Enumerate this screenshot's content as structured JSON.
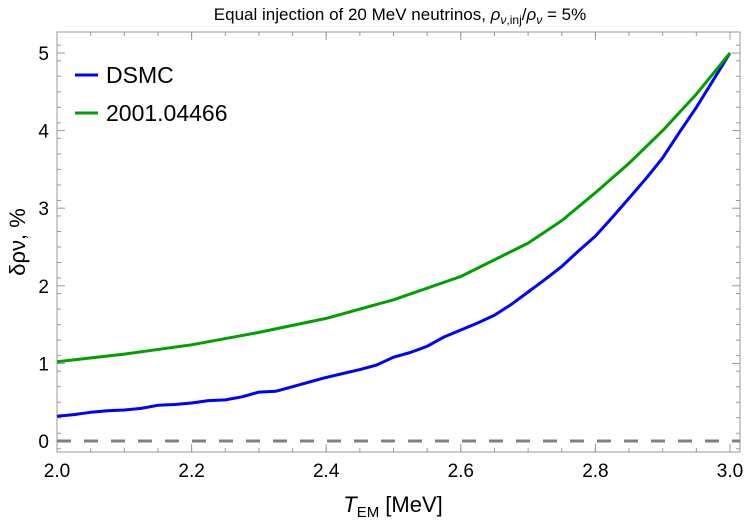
{
  "chart_data": {
    "type": "line",
    "title": "Equal injection of 20 MeV neutrinos, ρν,inj/ρν = 5%",
    "xlabel": "T_EM [MeV]",
    "ylabel": "δρν, %",
    "xlim": [
      2.0,
      3.0
    ],
    "ylim": [
      -0.15,
      5.2
    ],
    "x_ticks": [
      "2.0",
      "2.2",
      "2.4",
      "2.6",
      "2.8",
      "3.0"
    ],
    "y_ticks": [
      "0",
      "1",
      "2",
      "3",
      "4",
      "5"
    ],
    "grid": false,
    "legend_position": "top-left",
    "series": [
      {
        "name": "DSMC",
        "color": "#0000ff",
        "x": [
          2.0,
          2.025,
          2.05,
          2.075,
          2.1,
          2.125,
          2.15,
          2.175,
          2.2,
          2.225,
          2.25,
          2.275,
          2.3,
          2.325,
          2.35,
          2.375,
          2.4,
          2.425,
          2.45,
          2.475,
          2.5,
          2.525,
          2.55,
          2.575,
          2.6,
          2.625,
          2.65,
          2.675,
          2.7,
          2.725,
          2.75,
          2.775,
          2.8,
          2.825,
          2.85,
          2.875,
          2.9,
          2.925,
          2.95,
          2.975,
          3.0
        ],
        "y": [
          0.32,
          0.34,
          0.37,
          0.39,
          0.4,
          0.42,
          0.46,
          0.47,
          0.49,
          0.52,
          0.53,
          0.57,
          0.63,
          0.64,
          0.7,
          0.76,
          0.82,
          0.87,
          0.92,
          0.98,
          1.08,
          1.14,
          1.22,
          1.34,
          1.43,
          1.52,
          1.62,
          1.76,
          1.92,
          2.08,
          2.25,
          2.45,
          2.64,
          2.88,
          3.13,
          3.38,
          3.65,
          3.98,
          4.3,
          4.65,
          5.0
        ]
      },
      {
        "name": "2001.04466",
        "color": "#00a000",
        "x": [
          2.0,
          2.1,
          2.2,
          2.3,
          2.4,
          2.5,
          2.6,
          2.7,
          2.75,
          2.8,
          2.85,
          2.9,
          2.95,
          3.0
        ],
        "y": [
          1.02,
          1.12,
          1.24,
          1.4,
          1.58,
          1.82,
          2.12,
          2.55,
          2.84,
          3.2,
          3.58,
          4.0,
          4.47,
          5.0
        ]
      }
    ],
    "reference_line": {
      "y": 0,
      "color": "#808080",
      "style": "dashed"
    }
  },
  "title_parts": {
    "main": "Equal injection of 20 MeV neutrinos, ",
    "rho": "ρ",
    "nu": "ν",
    "inj": ",inj",
    "slash": "/",
    "tail": " = 5%"
  },
  "ylabel_parts": {
    "delta": "δρ",
    "nu": "ν",
    "tail": ", %"
  },
  "xlabel_parts": {
    "T": "T",
    "sub": "EM",
    "unit": " [MeV]"
  }
}
